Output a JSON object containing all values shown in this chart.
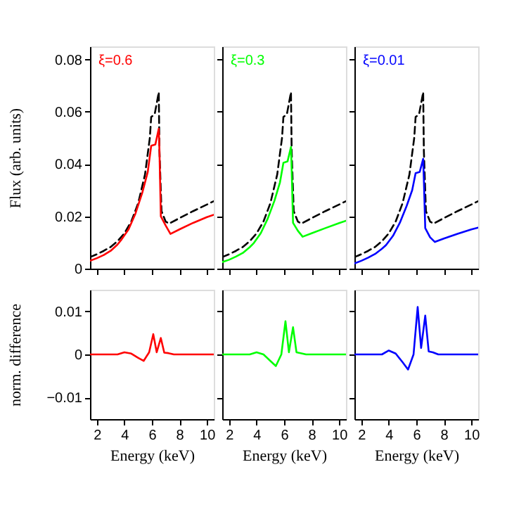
{
  "chart_data": [
    {
      "type": "line",
      "ylabel": "Flux (arb. units)",
      "xlim": [
        1.5,
        10.5
      ],
      "xticks": [
        2,
        4,
        6,
        8,
        10
      ],
      "ylim": [
        0,
        0.085
      ],
      "yticks": [
        0,
        0.02,
        0.04,
        0.06,
        0.08
      ],
      "tick_labels": "y",
      "legend": "top left",
      "series": [
        {
          "color": "#000000",
          "line_style": "dashed",
          "x": [
            1.5,
            2,
            2.5,
            3,
            3.5,
            4,
            4.5,
            5,
            5.5,
            5.85,
            5.95,
            6.2,
            6.5,
            6.55,
            6.7,
            7.0,
            7.25,
            8,
            9,
            10,
            10.5
          ],
          "values": [
            0.0044,
            0.0055,
            0.0068,
            0.0083,
            0.0105,
            0.0135,
            0.018,
            0.025,
            0.036,
            0.05,
            0.058,
            0.059,
            0.0675,
            0.045,
            0.022,
            0.018,
            0.0172,
            0.0193,
            0.022,
            0.0245,
            0.0258
          ]
        },
        {
          "name": "ξ=0.6",
          "color": "#ff0000",
          "line_style": "solid",
          "x": [
            1.5,
            2,
            2.5,
            3,
            3.5,
            3.8,
            4.3,
            4.8,
            5.3,
            5.7,
            5.95,
            6.25,
            6.5,
            6.55,
            6.65,
            7.0,
            7.35,
            8,
            9,
            10,
            10.5
          ],
          "values": [
            0.003,
            0.004,
            0.0052,
            0.0068,
            0.0092,
            0.0112,
            0.015,
            0.021,
            0.029,
            0.037,
            0.047,
            0.0475,
            0.0535,
            0.045,
            0.02,
            0.0165,
            0.0133,
            0.015,
            0.0175,
            0.0197,
            0.0206
          ]
        }
      ]
    },
    {
      "type": "line",
      "xlim": [
        1.5,
        10.5
      ],
      "xticks": [
        2,
        4,
        6,
        8,
        10
      ],
      "ylim": [
        0,
        0.085
      ],
      "yticks": [
        0,
        0.02,
        0.04,
        0.06,
        0.08
      ],
      "tick_labels": false,
      "legend": "top left",
      "series": [
        {
          "color": "#000000",
          "line_style": "dashed",
          "x": [
            1.5,
            2,
            2.5,
            3,
            3.5,
            4,
            4.5,
            5,
            5.5,
            5.85,
            5.95,
            6.2,
            6.5,
            6.55,
            6.7,
            7.0,
            7.25,
            8,
            9,
            10,
            10.5
          ],
          "values": [
            0.0044,
            0.0055,
            0.0068,
            0.0083,
            0.0105,
            0.0135,
            0.018,
            0.025,
            0.036,
            0.05,
            0.058,
            0.059,
            0.0675,
            0.045,
            0.022,
            0.018,
            0.0172,
            0.0193,
            0.022,
            0.0245,
            0.0258
          ]
        },
        {
          "name": "ξ=0.3",
          "color": "#00ff00",
          "line_style": "solid",
          "x": [
            1.5,
            2,
            2.5,
            3,
            3.5,
            3.8,
            4.3,
            4.8,
            5.3,
            5.7,
            5.95,
            6.25,
            6.5,
            6.55,
            6.65,
            7.0,
            7.35,
            8,
            9,
            10,
            10.5
          ],
          "values": [
            0.0025,
            0.0034,
            0.0046,
            0.006,
            0.0082,
            0.0098,
            0.0135,
            0.019,
            0.026,
            0.033,
            0.0405,
            0.041,
            0.0465,
            0.038,
            0.0175,
            0.0145,
            0.0122,
            0.0135,
            0.0155,
            0.0174,
            0.0183
          ]
        }
      ]
    },
    {
      "type": "line",
      "xlim": [
        1.5,
        10.5
      ],
      "xticks": [
        2,
        4,
        6,
        8,
        10
      ],
      "ylim": [
        0,
        0.085
      ],
      "yticks": [
        0,
        0.02,
        0.04,
        0.06,
        0.08
      ],
      "tick_labels": false,
      "legend": "top left",
      "series": [
        {
          "color": "#000000",
          "line_style": "dashed",
          "x": [
            1.5,
            2,
            2.5,
            3,
            3.5,
            4,
            4.5,
            5,
            5.5,
            5.85,
            5.95,
            6.2,
            6.5,
            6.55,
            6.7,
            7.0,
            7.25,
            8,
            9,
            10,
            10.5
          ],
          "values": [
            0.0044,
            0.0055,
            0.0068,
            0.0083,
            0.0105,
            0.0135,
            0.018,
            0.025,
            0.036,
            0.05,
            0.058,
            0.059,
            0.0675,
            0.045,
            0.022,
            0.018,
            0.0172,
            0.0193,
            0.022,
            0.0245,
            0.0258
          ]
        },
        {
          "name": "ξ=0.01",
          "color": "#0000ff",
          "line_style": "solid",
          "x": [
            1.5,
            2,
            2.5,
            3,
            3.5,
            3.8,
            4.3,
            4.8,
            5.3,
            5.7,
            5.95,
            6.25,
            6.5,
            6.55,
            6.65,
            7.0,
            7.35,
            8,
            9,
            10,
            10.5
          ],
          "values": [
            0.002,
            0.003,
            0.0042,
            0.0056,
            0.0076,
            0.009,
            0.0125,
            0.0175,
            0.024,
            0.03,
            0.0365,
            0.037,
            0.042,
            0.034,
            0.0155,
            0.012,
            0.0102,
            0.0115,
            0.0133,
            0.015,
            0.0157
          ]
        }
      ]
    },
    {
      "type": "line",
      "xlabel": "Energy (keV)",
      "ylabel": "norm. difference",
      "xlim": [
        1.5,
        10.5
      ],
      "xticks": [
        2,
        4,
        6,
        8,
        10
      ],
      "ylim": [
        -0.015,
        0.015
      ],
      "yticks": [
        {
          "value": -0.01,
          "label": "−0.01"
        },
        0,
        0.01
      ],
      "series": [
        {
          "color": "#ff0000",
          "line_style": "solid",
          "x": [
            1.5,
            3.5,
            4.0,
            4.5,
            5.0,
            5.4,
            5.8,
            6.1,
            6.35,
            6.65,
            6.9,
            7.2,
            7.6,
            10.5
          ],
          "values": [
            0,
            0,
            0.0005,
            0.0002,
            -0.0008,
            -0.0015,
            0.0005,
            0.0047,
            0.0005,
            0.0038,
            0.0004,
            0.0003,
            0,
            0
          ]
        }
      ]
    },
    {
      "type": "line",
      "xlabel": "Energy (keV)",
      "xlim": [
        1.5,
        10.5
      ],
      "xticks": [
        2,
        4,
        6,
        8,
        10
      ],
      "ylim": [
        -0.015,
        0.015
      ],
      "yticks": [
        -0.01,
        0,
        0.01
      ],
      "tick_labels": "x",
      "series": [
        {
          "color": "#00ff00",
          "line_style": "solid",
          "x": [
            1.5,
            3.5,
            4.0,
            4.5,
            5.0,
            5.4,
            5.8,
            6.1,
            6.35,
            6.65,
            6.9,
            7.2,
            7.6,
            10.5
          ],
          "values": [
            0,
            0,
            0.0005,
            0,
            -0.0015,
            -0.0027,
            0,
            0.0077,
            0.0005,
            0.0063,
            0.0005,
            0.0003,
            0,
            0
          ]
        }
      ]
    },
    {
      "type": "line",
      "xlabel": "Energy (keV)",
      "xlim": [
        1.5,
        10.5
      ],
      "xticks": [
        2,
        4,
        6,
        8,
        10
      ],
      "ylim": [
        -0.015,
        0.015
      ],
      "yticks": [
        -0.01,
        0,
        0.01
      ],
      "tick_labels": "x",
      "series": [
        {
          "color": "#0000ff",
          "line_style": "solid",
          "x": [
            1.5,
            3.5,
            4.0,
            4.5,
            5.0,
            5.4,
            5.8,
            6.1,
            6.35,
            6.65,
            6.9,
            7.2,
            7.6,
            10.5
          ],
          "values": [
            0,
            0,
            0.0009,
            0.0002,
            -0.0018,
            -0.0035,
            0,
            0.011,
            0.0015,
            0.009,
            0.0007,
            0.0005,
            0,
            0
          ]
        }
      ]
    }
  ]
}
